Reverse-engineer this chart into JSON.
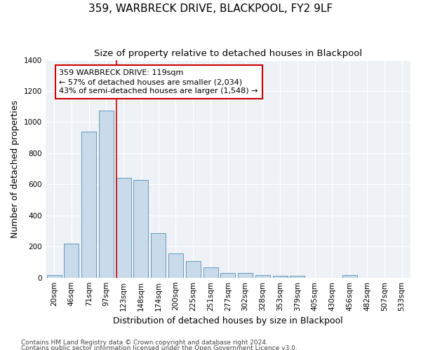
{
  "title": "359, WARBRECK DRIVE, BLACKPOOL, FY2 9LF",
  "subtitle": "Size of property relative to detached houses in Blackpool",
  "xlabel": "Distribution of detached houses by size in Blackpool",
  "ylabel": "Number of detached properties",
  "categories": [
    "20sqm",
    "46sqm",
    "71sqm",
    "97sqm",
    "123sqm",
    "148sqm",
    "174sqm",
    "200sqm",
    "225sqm",
    "251sqm",
    "277sqm",
    "302sqm",
    "328sqm",
    "353sqm",
    "379sqm",
    "405sqm",
    "430sqm",
    "456sqm",
    "482sqm",
    "507sqm",
    "533sqm"
  ],
  "values": [
    15,
    220,
    940,
    1075,
    640,
    630,
    285,
    155,
    105,
    65,
    30,
    28,
    18,
    13,
    10,
    0,
    0,
    15,
    0,
    0,
    0
  ],
  "bar_color": "#c9daea",
  "bar_edge_color": "#6699bb",
  "vline_index": 4,
  "vline_color": "#cc0000",
  "annotation_text": "359 WARBRECK DRIVE: 119sqm\n← 57% of detached houses are smaller (2,034)\n43% of semi-detached houses are larger (1,548) →",
  "annotation_box_color": "#ffffff",
  "annotation_box_edge": "#cc0000",
  "ylim": [
    0,
    1400
  ],
  "yticks": [
    0,
    200,
    400,
    600,
    800,
    1000,
    1200,
    1400
  ],
  "footer1": "Contains HM Land Registry data © Crown copyright and database right 2024.",
  "footer2": "Contains public sector information licensed under the Open Government Licence v3.0.",
  "fig_facecolor": "#ffffff",
  "ax_facecolor": "#eef2f7",
  "grid_color": "#ffffff",
  "title_fontsize": 11,
  "subtitle_fontsize": 9.5,
  "axis_label_fontsize": 9,
  "tick_fontsize": 7.5,
  "footer_fontsize": 6.5,
  "annot_fontsize": 8
}
